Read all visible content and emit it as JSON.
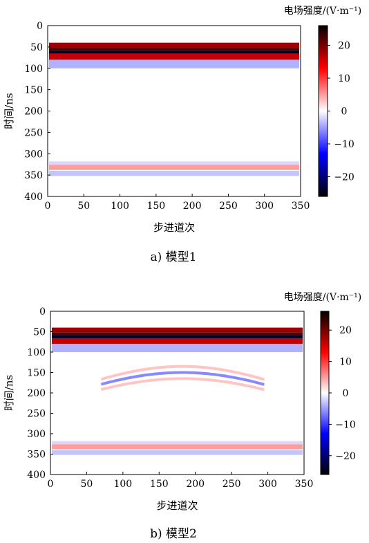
{
  "panels": [
    {
      "caption": "a) 模型1",
      "colorbar_title": "电场强度/(V·m⁻¹)",
      "xlabel": "步进道次",
      "ylabel": "时间/ns",
      "x_ticks": [
        "0",
        "50",
        "100",
        "150",
        "200",
        "250",
        "300",
        "350"
      ],
      "y_ticks": [
        "0",
        "50",
        "100",
        "150",
        "200",
        "250",
        "300",
        "350",
        "400"
      ],
      "colorbar_ticks": [
        "20",
        "10",
        "0",
        "−10",
        "−20"
      ]
    },
    {
      "caption": "b) 模型2",
      "colorbar_title": "电场强度/(V·m⁻¹)",
      "xlabel": "步进道次",
      "ylabel": "时间/ns",
      "x_ticks": [
        "0",
        "50",
        "100",
        "150",
        "200",
        "250",
        "300",
        "350"
      ],
      "y_ticks": [
        "0",
        "50",
        "100",
        "150",
        "200",
        "250",
        "300",
        "350",
        "400"
      ],
      "colorbar_ticks": [
        "20",
        "10",
        "0",
        "−10",
        "−20"
      ]
    }
  ],
  "chart_data": [
    {
      "type": "heatmap",
      "title": "a) 模型1",
      "xlabel": "步进道次",
      "ylabel": "时间/ns",
      "xlim": [
        0,
        350
      ],
      "ylim": [
        400,
        0
      ],
      "colorbar": {
        "label": "电场强度/(V·m⁻¹)",
        "range": [
          -26,
          26
        ],
        "colormap": "black-blue-white-red-black"
      },
      "features": [
        {
          "kind": "horizontal_band",
          "t_start": 40,
          "t_end": 52,
          "value": 18
        },
        {
          "kind": "horizontal_band",
          "t_start": 52,
          "t_end": 58,
          "value": 22
        },
        {
          "kind": "horizontal_band",
          "t_start": 58,
          "t_end": 66,
          "value": -24
        },
        {
          "kind": "horizontal_band",
          "t_start": 66,
          "t_end": 80,
          "value": 16
        },
        {
          "kind": "horizontal_band",
          "t_start": 80,
          "t_end": 100,
          "value": -4
        },
        {
          "kind": "horizontal_band",
          "t_start": 318,
          "t_end": 326,
          "value": -2
        },
        {
          "kind": "horizontal_band",
          "t_start": 326,
          "t_end": 338,
          "value": 5
        },
        {
          "kind": "horizontal_band",
          "t_start": 340,
          "t_end": 352,
          "value": -3
        }
      ]
    },
    {
      "type": "heatmap",
      "title": "b) 模型2",
      "xlabel": "步进道次",
      "ylabel": "时间/ns",
      "xlim": [
        0,
        350
      ],
      "ylim": [
        400,
        0
      ],
      "colorbar": {
        "label": "电场强度/(V·m⁻¹)",
        "range": [
          -26,
          26
        ],
        "colormap": "black-blue-white-red-black"
      },
      "features": [
        {
          "kind": "horizontal_band",
          "t_start": 40,
          "t_end": 52,
          "value": 18
        },
        {
          "kind": "horizontal_band",
          "t_start": 52,
          "t_end": 58,
          "value": 22
        },
        {
          "kind": "horizontal_band",
          "t_start": 58,
          "t_end": 66,
          "value": -24
        },
        {
          "kind": "horizontal_band",
          "t_start": 66,
          "t_end": 80,
          "value": 16
        },
        {
          "kind": "horizontal_band",
          "t_start": 80,
          "t_end": 100,
          "value": -4
        },
        {
          "kind": "hyperbola",
          "apex_trace": 182,
          "apex_time": 135,
          "value": 4
        },
        {
          "kind": "hyperbola",
          "apex_trace": 182,
          "apex_time": 150,
          "value": -8
        },
        {
          "kind": "hyperbola",
          "apex_trace": 182,
          "apex_time": 165,
          "value": 4
        },
        {
          "kind": "horizontal_band",
          "t_start": 318,
          "t_end": 326,
          "value": -2
        },
        {
          "kind": "horizontal_band",
          "t_start": 326,
          "t_end": 338,
          "value": 5
        },
        {
          "kind": "horizontal_band",
          "t_start": 340,
          "t_end": 352,
          "value": -3
        }
      ]
    }
  ]
}
